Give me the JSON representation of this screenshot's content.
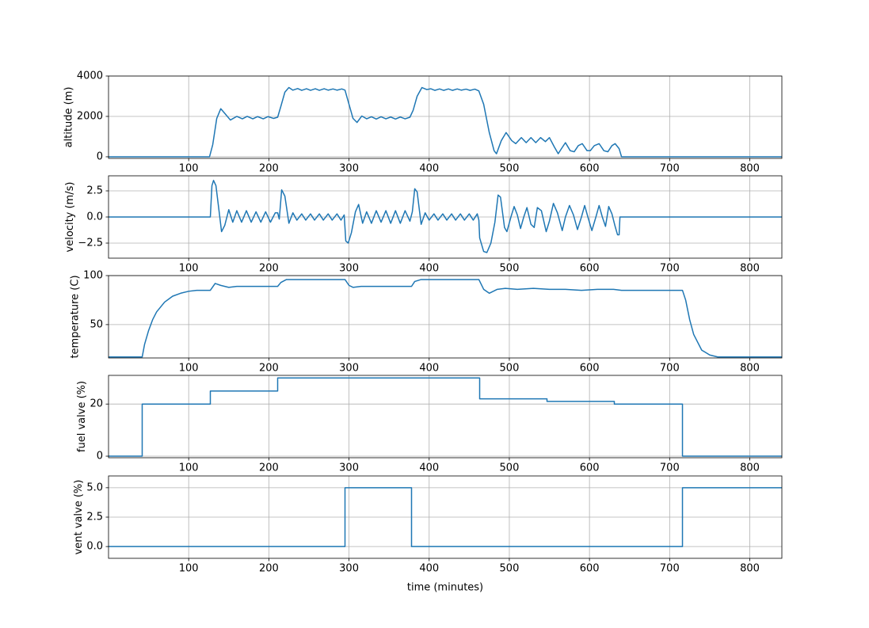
{
  "chart_data": [
    {
      "type": "line",
      "ylabel": "altitude (m)",
      "color": "#1f77b4",
      "grid": true,
      "xlim": [
        0,
        840
      ],
      "xticks": [
        100,
        200,
        300,
        400,
        500,
        600,
        700,
        800
      ],
      "ylim": [
        -80,
        4000
      ],
      "yticks": [
        0,
        2000,
        4000
      ],
      "x": [
        0,
        126,
        130,
        135,
        140,
        145,
        152,
        160,
        167,
        173,
        180,
        186,
        193,
        199,
        206,
        211,
        215,
        220,
        225,
        230,
        236,
        241,
        247,
        252,
        258,
        263,
        269,
        274,
        280,
        285,
        291,
        295,
        300,
        305,
        310,
        316,
        322,
        328,
        334,
        340,
        346,
        352,
        358,
        364,
        370,
        376,
        380,
        385,
        391,
        397,
        402,
        407,
        413,
        418,
        424,
        429,
        435,
        440,
        446,
        451,
        457,
        462,
        468,
        475,
        481,
        484,
        490,
        496,
        503,
        508,
        515,
        521,
        527,
        533,
        539,
        545,
        550,
        556,
        561,
        565,
        570,
        576,
        581,
        586,
        591,
        597,
        601,
        606,
        612,
        618,
        623,
        628,
        632,
        637,
        640,
        840
      ],
      "values": [
        0,
        0,
        600,
        1900,
        2380,
        2150,
        1820,
        2000,
        1880,
        2000,
        1880,
        1990,
        1880,
        1990,
        1900,
        1960,
        2500,
        3200,
        3430,
        3300,
        3380,
        3290,
        3370,
        3290,
        3370,
        3290,
        3370,
        3300,
        3360,
        3300,
        3360,
        3300,
        2600,
        1900,
        1700,
        2020,
        1880,
        1980,
        1870,
        1980,
        1880,
        1970,
        1870,
        1970,
        1880,
        1960,
        2300,
        3000,
        3430,
        3330,
        3370,
        3290,
        3360,
        3290,
        3360,
        3290,
        3360,
        3300,
        3350,
        3290,
        3350,
        3260,
        2600,
        1200,
        300,
        150,
        800,
        1200,
        800,
        650,
        950,
        700,
        950,
        700,
        950,
        750,
        950,
        500,
        150,
        400,
        700,
        300,
        250,
        550,
        650,
        300,
        300,
        550,
        650,
        300,
        250,
        550,
        650,
        400,
        0,
        0
      ]
    },
    {
      "type": "line",
      "ylabel": "velocity (m/s)",
      "color": "#1f77b4",
      "grid": true,
      "xlim": [
        0,
        840
      ],
      "xticks": [
        100,
        200,
        300,
        400,
        500,
        600,
        700,
        800
      ],
      "ylim": [
        -3.94,
        3.94
      ],
      "yticks": [
        {
          "value": -2.5,
          "label": "−2.5"
        },
        {
          "value": 0,
          "label": "0.0"
        },
        2.5
      ],
      "x": [
        0,
        127,
        129,
        131,
        134,
        138,
        141,
        145,
        150,
        155,
        160,
        166,
        172,
        178,
        184,
        190,
        196,
        202,
        208,
        211,
        213,
        216,
        220,
        225,
        230,
        235,
        241,
        246,
        252,
        257,
        263,
        268,
        274,
        279,
        285,
        290,
        294,
        296,
        299,
        303,
        308,
        312,
        317,
        322,
        328,
        334,
        340,
        346,
        352,
        358,
        364,
        370,
        376,
        379,
        382,
        385,
        390,
        395,
        400,
        406,
        411,
        417,
        422,
        428,
        433,
        439,
        444,
        450,
        455,
        460,
        462,
        463,
        468,
        472,
        477,
        482,
        486,
        489,
        494,
        497,
        502,
        506,
        510,
        514,
        518,
        522,
        527,
        531,
        535,
        540,
        546,
        550,
        555,
        560,
        566,
        570,
        575,
        580,
        585,
        590,
        594,
        598,
        603,
        608,
        612,
        616,
        620,
        624,
        628,
        632,
        635,
        637,
        638,
        840
      ],
      "values": [
        0,
        0,
        3.0,
        3.5,
        3.0,
        0.5,
        -1.4,
        -0.8,
        0.7,
        -0.5,
        0.6,
        -0.5,
        0.6,
        -0.5,
        0.5,
        -0.5,
        0.5,
        -0.5,
        0.4,
        0.4,
        -0.2,
        2.6,
        2.0,
        -0.6,
        0.4,
        -0.3,
        0.3,
        -0.3,
        0.3,
        -0.3,
        0.3,
        -0.3,
        0.3,
        -0.3,
        0.3,
        -0.3,
        0.2,
        -2.3,
        -2.5,
        -1.5,
        0.5,
        1.2,
        -0.6,
        0.5,
        -0.6,
        0.6,
        -0.5,
        0.6,
        -0.6,
        0.6,
        -0.6,
        0.6,
        -0.4,
        0.5,
        2.7,
        2.4,
        -0.7,
        0.4,
        -0.3,
        0.3,
        -0.3,
        0.3,
        -0.3,
        0.3,
        -0.3,
        0.3,
        -0.3,
        0.3,
        -0.3,
        0.3,
        -0.3,
        -2.0,
        -3.3,
        -3.4,
        -2.5,
        -0.5,
        2.1,
        1.9,
        -1.0,
        -1.4,
        0.0,
        1.0,
        0.2,
        -1.1,
        0.0,
        0.9,
        -0.7,
        -1.0,
        0.9,
        0.6,
        -1.4,
        -0.4,
        1.3,
        0.4,
        -1.3,
        0.0,
        1.1,
        0.2,
        -1.2,
        0.0,
        1.1,
        0.0,
        -1.3,
        0.0,
        1.1,
        0.0,
        -0.9,
        1.0,
        0.3,
        -0.9,
        -1.7,
        -1.7,
        0,
        0
      ]
    },
    {
      "type": "line",
      "ylabel": "temperature (C)",
      "color": "#1f77b4",
      "grid": true,
      "xlim": [
        0,
        840
      ],
      "xticks": [
        100,
        200,
        300,
        400,
        500,
        600,
        700,
        800
      ],
      "ylim": [
        16,
        100
      ],
      "yticks": [
        50,
        100
      ],
      "x": [
        0,
        42,
        45,
        50,
        55,
        60,
        70,
        80,
        90,
        100,
        110,
        127,
        133,
        140,
        150,
        160,
        211,
        215,
        222,
        295,
        300,
        305,
        315,
        378,
        382,
        390,
        462,
        468,
        475,
        485,
        495,
        510,
        530,
        550,
        570,
        590,
        610,
        630,
        640,
        716,
        720,
        725,
        730,
        740,
        750,
        760,
        840
      ],
      "values": [
        17,
        17,
        30,
        44,
        55,
        63,
        73,
        79,
        82,
        84,
        85,
        85,
        92,
        90,
        88,
        89,
        89,
        93,
        96,
        96,
        90,
        88,
        89,
        89,
        94,
        96,
        96,
        86,
        82,
        86,
        87,
        86,
        87,
        86,
        86,
        85,
        86,
        86,
        85,
        85,
        75,
        55,
        40,
        24,
        19,
        17,
        17
      ]
    },
    {
      "type": "line",
      "ylabel": "fuel valve (%)",
      "color": "#1f77b4",
      "grid": true,
      "xlim": [
        0,
        840
      ],
      "xticks": [
        100,
        200,
        300,
        400,
        500,
        600,
        700,
        800
      ],
      "ylim": [
        -0.6,
        31
      ],
      "yticks": [
        0,
        20
      ],
      "x": [
        0,
        42,
        42,
        127,
        127,
        211,
        211,
        463,
        463,
        547,
        547,
        631,
        631,
        716,
        716,
        840
      ],
      "values": [
        0,
        0,
        20,
        20,
        25,
        25,
        30,
        30,
        22,
        22,
        21,
        21,
        20,
        20,
        0,
        0
      ]
    },
    {
      "type": "line",
      "ylabel": "vent valve (%)",
      "xlabel": "time (minutes)",
      "color": "#1f77b4",
      "grid": true,
      "xlim": [
        0,
        840
      ],
      "xticks": [
        100,
        200,
        300,
        400,
        500,
        600,
        700,
        800
      ],
      "ylim": [
        -1,
        6
      ],
      "yticks": [
        {
          "value": 0,
          "label": "0.0"
        },
        2.5,
        {
          "value": 5,
          "label": "5.0"
        }
      ],
      "x": [
        0,
        295,
        295,
        378,
        378,
        716,
        716,
        840
      ],
      "values": [
        0,
        0,
        5,
        5,
        0,
        0,
        5,
        5
      ]
    }
  ]
}
